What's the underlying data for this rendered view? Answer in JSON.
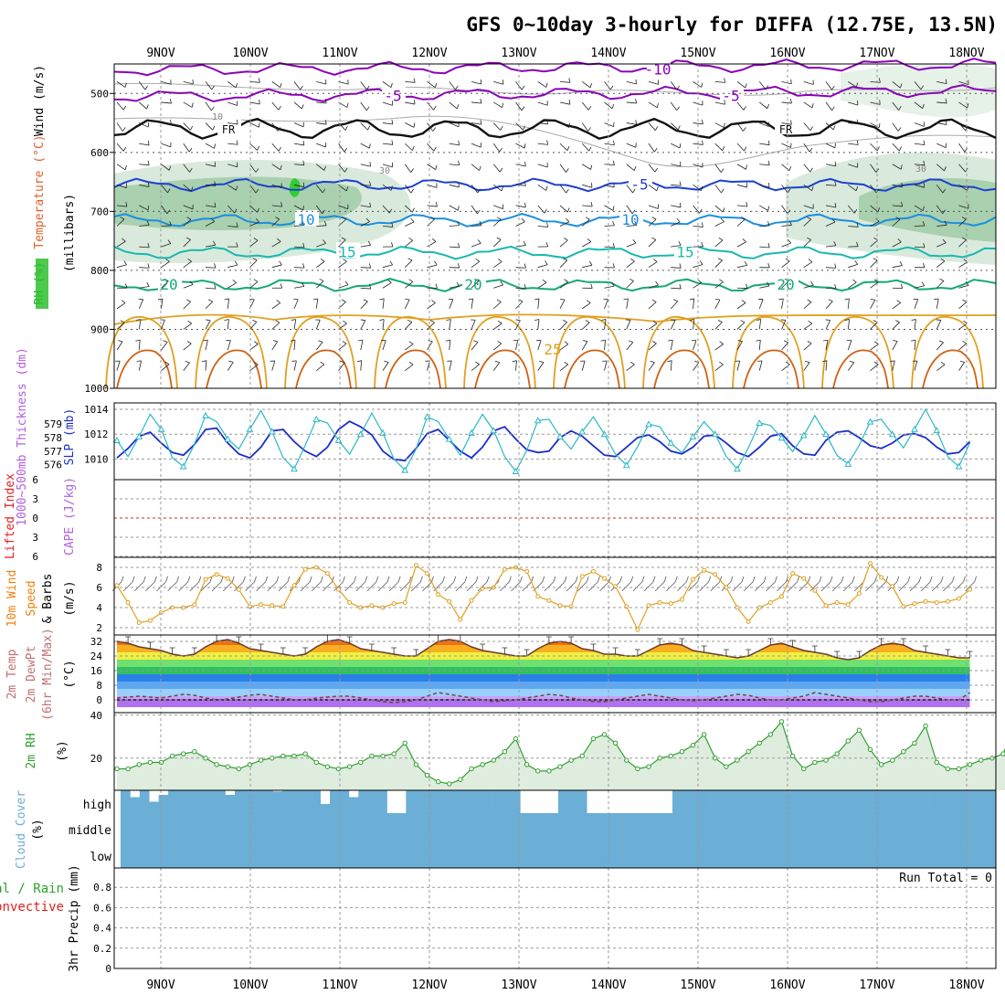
{
  "title": "GFS 0~10day 3-hourly for DIFFA (12.75E, 13.5N)",
  "colors": {
    "purple": "#8a00b8",
    "black": "#111111",
    "blue": "#1e3fd0",
    "lightblue": "#1a8fe0",
    "teal": "#18b8b0",
    "green": "#14a878",
    "orange": "#e0a020",
    "darkorange": "#d06010",
    "rh": "#2fa02f",
    "cloud": "#6baed6",
    "grid": "#999999",
    "cyan": "#2ab8c8",
    "slp": "#1b2fc8",
    "red": "#e02020",
    "violet": "#b060e0"
  },
  "chart_data": [
    {
      "type": "contour",
      "name": "upper-air cross section",
      "ylabel": "(millibars)",
      "ylabel_parts": [
        "RH (%)",
        "Temperature (°C)",
        "Wind (m/s)"
      ],
      "ylim": [
        1000,
        450
      ],
      "y_ticks": [
        "500",
        "600",
        "700",
        "800",
        "900",
        "1000"
      ],
      "contours": [
        {
          "label": "-10",
          "level_mb": 460
        },
        {
          "label": "-5",
          "level_mb": 505
        },
        {
          "label": "FR",
          "level_mb": 560
        },
        {
          "label": "-5",
          "level_mb": 655
        },
        {
          "label": "10",
          "level_mb": 715
        },
        {
          "label": "15",
          "level_mb": 770
        },
        {
          "label": "20",
          "level_mb": 825
        },
        {
          "label": "25",
          "level_mb": 920
        }
      ],
      "rh_labels": [
        "10",
        "30"
      ]
    },
    {
      "type": "line",
      "name": "thickness and sea-level pressure",
      "ylabel_left": "1000~500mb Thickness (dm)",
      "ylabel_right": "SLP (mb)",
      "left_ticks": [
        "579",
        "578",
        "577",
        "576"
      ],
      "right_ticks": [
        "1014",
        "1012",
        "1010"
      ],
      "series": [
        {
          "name": "Thickness",
          "values": [
            576.5,
            577.2,
            578.1,
            578.4,
            577.6,
            576.9,
            576.7,
            577.5,
            578.6,
            578.7,
            577.6,
            576.8,
            576.5,
            577.3,
            578.5,
            578.6,
            577.7,
            577.0,
            576.6,
            577.3,
            578.6,
            579.2,
            578.8,
            578.2,
            577.0,
            576.4,
            576.3,
            577.2,
            578.3,
            578.6,
            577.8,
            577.0,
            576.5,
            577.3,
            578.5,
            578.8,
            577.9,
            577.1,
            576.9,
            577.0,
            578.0,
            578.5,
            578.1,
            577.4,
            576.7,
            576.6,
            577.3,
            578.0,
            578.2,
            577.7,
            577.0,
            576.8,
            577.3,
            578.1,
            578.2,
            577.6,
            576.9,
            576.6,
            577.3,
            578.1,
            578.3,
            577.4,
            576.8,
            576.7,
            577.8,
            578.4,
            578.5,
            578.0,
            577.4,
            577.2,
            577.6,
            578.2,
            578.3,
            578.0,
            577.3,
            576.8,
            576.9,
            577.7
          ]
        },
        {
          "name": "SLP",
          "values": [
            1011.5,
            1010.2,
            1011.8,
            1013.6,
            1012.4,
            1010.1,
            1009.4,
            1011.2,
            1013.5,
            1013.0,
            1011.6,
            1010.8,
            1012.4,
            1013.9,
            1012.2,
            1010.1,
            1009.2,
            1011.1,
            1013.2,
            1012.9,
            1011.5,
            1010.4,
            1012.0,
            1013.7,
            1012.1,
            1010.0,
            1009.1,
            1010.8,
            1013.4,
            1013.0,
            1011.6,
            1010.3,
            1012.1,
            1013.6,
            1012.3,
            1010.2,
            1009.0,
            1010.7,
            1013.1,
            1013.2,
            1011.8,
            1010.8,
            1012.2,
            1013.4,
            1012.0,
            1010.4,
            1009.5,
            1011.0,
            1012.8,
            1012.6,
            1011.3,
            1010.5,
            1011.8,
            1013.0,
            1012.0,
            1010.2,
            1009.2,
            1010.9,
            1012.9,
            1012.7,
            1011.7,
            1010.6,
            1011.9,
            1013.5,
            1012.0,
            1010.3,
            1009.6,
            1011.1,
            1013.0,
            1013.2,
            1012.0,
            1010.9,
            1012.4,
            1014.0,
            1012.3,
            1010.2,
            1009.4,
            1011.3
          ]
        }
      ]
    },
    {
      "type": "line",
      "name": "stability",
      "ylabel_left": "Lifted Index",
      "ylabel_right": "CAPE (J/kg)",
      "y_ticks": [
        "-6",
        "-3",
        "0",
        "3",
        "6"
      ],
      "series": [
        {
          "name": "Lifted Index",
          "values": []
        },
        {
          "name": "CAPE",
          "values": []
        }
      ]
    },
    {
      "type": "line",
      "name": "10m wind",
      "ylabel": "10m Wind Speed & Barbs (m/s)",
      "ylabel_parts": [
        "10m Wind",
        "Speed",
        "& Barbs",
        "(m/s)"
      ],
      "ylim": [
        2,
        8.5
      ],
      "y_ticks": [
        "8",
        "6",
        "4",
        "2"
      ],
      "series": [
        {
          "name": "10m Wind Speed",
          "values": [
            6.2,
            4.5,
            2.5,
            2.7,
            3.5,
            4.0,
            4.0,
            4.3,
            6.8,
            7.3,
            6.9,
            5.8,
            4.1,
            4.3,
            4.2,
            4.1,
            6.2,
            7.8,
            8.0,
            7.4,
            5.8,
            4.5,
            4.0,
            4.2,
            4.0,
            4.4,
            4.5,
            8.2,
            7.4,
            5.3,
            4.6,
            2.8,
            4.7,
            5.9,
            6.0,
            7.8,
            8.0,
            7.6,
            5.1,
            4.7,
            4.2,
            4.1,
            7.1,
            7.6,
            6.9,
            6.1,
            4.1,
            1.8,
            4.2,
            4.5,
            4.4,
            4.8,
            6.8,
            7.7,
            7.3,
            6.0,
            4.0,
            2.6,
            4.0,
            4.5,
            5.1,
            7.4,
            6.9,
            5.7,
            4.2,
            4.5,
            4.3,
            5.4,
            8.4,
            7.0,
            6.1,
            4.1,
            4.4,
            4.6,
            4.5,
            4.6,
            4.9,
            5.8
          ]
        }
      ]
    },
    {
      "type": "area",
      "name": "2m temperature",
      "ylabel": "2m Temp 2m DewPt (6hr Min/Max) (°C)",
      "ylabel_parts": [
        "2m Temp",
        "2m DewPt",
        "(6hr Min/Max)",
        "(°C)"
      ],
      "ylim": [
        -4,
        36
      ],
      "y_ticks": [
        "32",
        "24",
        "16",
        "8",
        "0"
      ],
      "series": [
        {
          "name": "2m Temp",
          "values": [
            32,
            31,
            29,
            28,
            27,
            25,
            24,
            25,
            29,
            32,
            33,
            31,
            28,
            27,
            26,
            25,
            24,
            25,
            29,
            32,
            33,
            31,
            28,
            27,
            26,
            25,
            24,
            24,
            28,
            32,
            33,
            32,
            29,
            27,
            26,
            25,
            24,
            24,
            28,
            31,
            32,
            31,
            28,
            27,
            25,
            25,
            24,
            24,
            27,
            30,
            31,
            30,
            27,
            26,
            25,
            24,
            23,
            24,
            27,
            30,
            31,
            29,
            27,
            26,
            25,
            23,
            22,
            23,
            27,
            30,
            31,
            30,
            27,
            26,
            25,
            24,
            23,
            23
          ]
        },
        {
          "name": "2m DewPt",
          "values": [
            1,
            1.5,
            2,
            1.5,
            1,
            2,
            3,
            2.5,
            1,
            0,
            0.5,
            1.5,
            2.5,
            3,
            2,
            1,
            0,
            0,
            1,
            1.5,
            2,
            2,
            1,
            0,
            -1,
            -1.5,
            -1,
            0,
            2,
            4,
            3,
            2,
            1,
            0,
            -1,
            -0.5,
            0,
            1,
            2,
            3,
            2.5,
            1,
            0,
            -1,
            -1,
            0,
            1,
            2,
            3,
            2,
            1,
            0,
            -0.5,
            0,
            1,
            2,
            3,
            2.5,
            1,
            0,
            0,
            1,
            2,
            4,
            3,
            2,
            1,
            0,
            -1,
            -1,
            0,
            1,
            2,
            2,
            1,
            0,
            0,
            4
          ]
        }
      ]
    },
    {
      "type": "area",
      "name": "2m relative humidity",
      "ylabel": "2m RH (%)",
      "ylim": [
        5,
        40
      ],
      "y_ticks": [
        "40",
        "20"
      ],
      "series": [
        {
          "name": "2m RH",
          "values": [
            15,
            15,
            17,
            18,
            18,
            21,
            22,
            23,
            20,
            17,
            16,
            15,
            17,
            19,
            20,
            21,
            21,
            22,
            18,
            16,
            15,
            16,
            18,
            21,
            21,
            22,
            27,
            17,
            12,
            9,
            8,
            10,
            15,
            17,
            19,
            23,
            29,
            17,
            14,
            14,
            16,
            19,
            21,
            29,
            31,
            27,
            19,
            15,
            16,
            20,
            21,
            23,
            26,
            31,
            20,
            16,
            19,
            23,
            27,
            31,
            37,
            21,
            15,
            18,
            19,
            22,
            28,
            33,
            24,
            17,
            19,
            23,
            27,
            35,
            18,
            15,
            15,
            17,
            19,
            20,
            22,
            34
          ]
        }
      ]
    },
    {
      "type": "bar",
      "name": "cloud cover",
      "ylabel": "Cloud Cover (%)",
      "levels": [
        "high",
        "middle",
        "low"
      ],
      "series": [
        {
          "name": "high",
          "values": [
            100,
            70,
            100,
            50,
            80,
            100,
            100,
            100,
            100,
            100,
            100,
            80,
            100,
            100,
            100,
            100,
            95,
            100,
            100,
            100,
            100,
            40,
            100,
            100,
            70,
            100,
            100,
            100,
            0,
            0,
            100,
            100,
            100,
            100,
            100,
            100,
            100,
            100,
            100,
            100,
            100,
            100,
            0,
            0,
            0,
            0,
            100,
            100,
            100,
            0,
            0,
            0,
            0,
            0,
            0,
            0,
            0,
            0,
            100,
            100,
            100,
            100,
            100,
            100,
            100,
            100,
            100,
            100,
            100,
            100,
            100,
            100,
            100,
            100,
            100,
            100,
            100,
            100,
            100,
            100,
            100,
            100,
            100,
            100,
            100,
            100,
            100,
            100,
            100,
            100,
            100,
            100
          ]
        },
        {
          "name": "middle",
          "values": [
            100
          ]
        },
        {
          "name": "low",
          "values": [
            100
          ]
        }
      ]
    },
    {
      "type": "bar",
      "name": "precipitation",
      "ylabel": "3hr Precip (mm)",
      "legend_left": [
        "Total / Rain",
        "Convective"
      ],
      "ylim": [
        0,
        1
      ],
      "y_ticks": [
        "0.8",
        "0.6",
        "0.4",
        "0.2",
        "0"
      ],
      "run_total": "Run Total = 0",
      "series": [
        {
          "name": "Total / Rain",
          "values": []
        },
        {
          "name": "Convective",
          "values": []
        }
      ]
    }
  ],
  "x_axis": {
    "dates": [
      "9NOV",
      "10NOV",
      "11NOV",
      "12NOV",
      "13NOV",
      "14NOV",
      "15NOV",
      "16NOV",
      "17NOV",
      "18NOV"
    ]
  }
}
